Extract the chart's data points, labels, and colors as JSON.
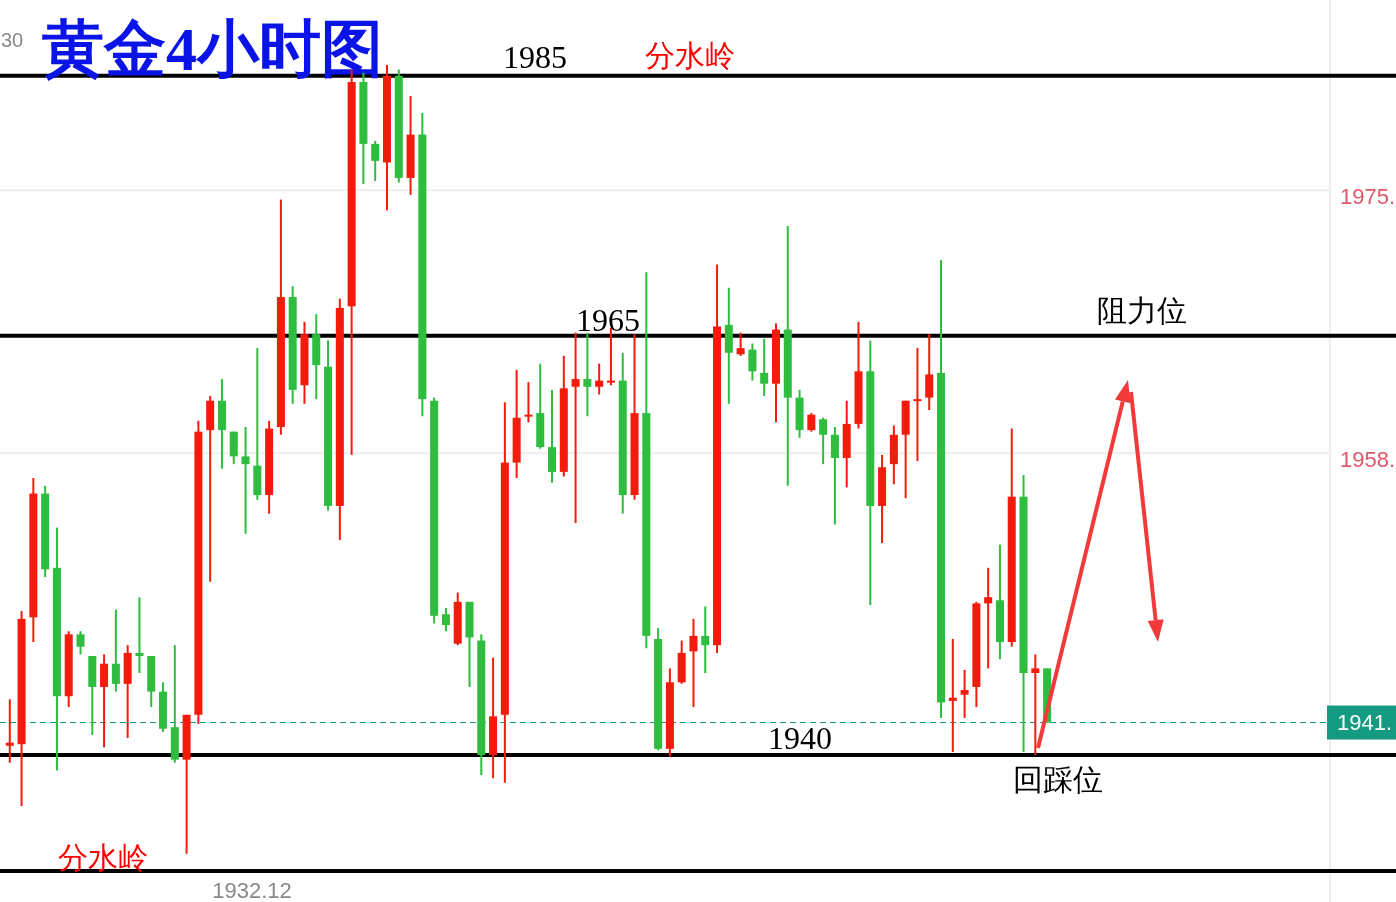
{
  "chart_data": {
    "type": "candlestick",
    "title": "黄金4小时图",
    "categories": [
      null,
      null,
      null,
      null,
      null,
      null,
      null,
      null,
      null,
      null,
      null,
      null,
      null,
      null,
      null,
      null,
      null,
      null,
      null,
      null,
      null,
      null,
      null,
      null,
      null,
      null,
      null,
      null,
      null,
      null,
      null,
      null,
      null,
      null,
      null,
      null,
      null,
      null,
      null,
      null,
      null,
      null,
      null,
      null,
      null,
      null,
      null,
      null,
      null,
      null,
      null,
      null,
      null,
      null,
      null,
      null,
      null,
      null,
      null,
      null,
      null,
      null,
      null,
      null,
      null,
      null,
      null,
      null,
      null,
      null,
      null,
      null,
      null,
      null,
      null,
      null,
      null,
      null,
      null,
      null,
      null,
      null,
      null,
      null,
      null,
      null,
      null,
      null,
      null,
      null,
      null,
      null,
      null,
      null,
      null,
      null,
      null,
      null,
      null,
      null,
      null,
      null,
      null,
      null,
      null,
      null,
      null,
      null,
      null,
      null,
      null,
      null
    ],
    "ohlc": [
      [
        1939.1,
        1942.1,
        1938.0,
        1939.3
      ],
      [
        1939.2,
        1947.8,
        1935.2,
        1947.3
      ],
      [
        1947.4,
        1956.4,
        1945.8,
        1955.4
      ],
      [
        1955.4,
        1955.9,
        1950.0,
        1950.5
      ],
      [
        1950.6,
        1953.2,
        1937.5,
        1942.3
      ],
      [
        1942.3,
        1946.5,
        1941.6,
        1946.3
      ],
      [
        1946.3,
        1946.5,
        1945.0,
        1945.5
      ],
      [
        1944.9,
        1944.9,
        1939.8,
        1942.9
      ],
      [
        1942.9,
        1945.0,
        1939.0,
        1944.4
      ],
      [
        1944.4,
        1947.9,
        1942.6,
        1943.1
      ],
      [
        1943.1,
        1945.6,
        1939.6,
        1945.1
      ],
      [
        1945.1,
        1948.7,
        1943.8,
        1944.9
      ],
      [
        1944.9,
        1944.9,
        1941.6,
        1942.6
      ],
      [
        1942.6,
        1943.2,
        1940.0,
        1940.2
      ],
      [
        1940.3,
        1945.6,
        1938.0,
        1938.2
      ],
      [
        1938.2,
        1941.1,
        1932.12,
        1941.1
      ],
      [
        1941.1,
        1960.1,
        1940.5,
        1959.4
      ],
      [
        1959.5,
        1961.7,
        1949.7,
        1961.4
      ],
      [
        1961.4,
        1962.8,
        1957.0,
        1959.5
      ],
      [
        1959.4,
        1959.4,
        1957.3,
        1957.8
      ],
      [
        1957.8,
        1959.7,
        1952.8,
        1957.3
      ],
      [
        1957.2,
        1964.8,
        1955.0,
        1955.3
      ],
      [
        1955.3,
        1960.1,
        1954.1,
        1959.6
      ],
      [
        1959.7,
        1974.4,
        1959.2,
        1968.1
      ],
      [
        1968.1,
        1968.8,
        1961.2,
        1962.1
      ],
      [
        1962.4,
        1966.5,
        1961.2,
        1965.7
      ],
      [
        1965.7,
        1967.0,
        1961.5,
        1963.7
      ],
      [
        1963.6,
        1965.3,
        1954.3,
        1954.6
      ],
      [
        1954.6,
        1968.0,
        1952.4,
        1967.4
      ],
      [
        1967.5,
        1982.8,
        1957.9,
        1982.0
      ],
      [
        1982.0,
        1982.6,
        1975.4,
        1978.0
      ],
      [
        1978.0,
        1978.2,
        1975.6,
        1976.9
      ],
      [
        1976.8,
        1983.1,
        1973.7,
        1982.4
      ],
      [
        1982.4,
        1982.8,
        1975.5,
        1975.8
      ],
      [
        1975.8,
        1981.1,
        1974.7,
        1978.6
      ],
      [
        1978.6,
        1980.0,
        1960.4,
        1961.5
      ],
      [
        1961.4,
        1961.6,
        1947.0,
        1947.5
      ],
      [
        1947.6,
        1948.0,
        1946.5,
        1946.9
      ],
      [
        1945.7,
        1949.0,
        1945.6,
        1948.4
      ],
      [
        1948.4,
        1948.4,
        1942.9,
        1946.1
      ],
      [
        1945.9,
        1946.3,
        1937.2,
        1938.5
      ],
      [
        1938.5,
        1944.8,
        1937.0,
        1941.0
      ],
      [
        1941.1,
        1961.3,
        1936.7,
        1957.4
      ],
      [
        1957.4,
        1963.4,
        1956.4,
        1960.3
      ],
      [
        1960.4,
        1962.6,
        1960.0,
        1960.5
      ],
      [
        1960.6,
        1963.8,
        1958.3,
        1958.4
      ],
      [
        1958.4,
        1962.1,
        1956.1,
        1956.8
      ],
      [
        1956.8,
        1964.3,
        1956.5,
        1962.2
      ],
      [
        1962.3,
        1965.8,
        1953.5,
        1962.8
      ],
      [
        1962.8,
        1965.8,
        1960.4,
        1962.3
      ],
      [
        1962.3,
        1963.8,
        1961.8,
        1962.7
      ],
      [
        1962.6,
        1966.1,
        1962.4,
        1962.7
      ],
      [
        1962.7,
        1964.5,
        1954.1,
        1955.3
      ],
      [
        1955.3,
        1965.7,
        1955.0,
        1960.6
      ],
      [
        1960.6,
        1969.7,
        1945.4,
        1946.2
      ],
      [
        1946.0,
        1946.7,
        1938.8,
        1938.9
      ],
      [
        1938.9,
        1944.1,
        1938.4,
        1943.2
      ],
      [
        1943.2,
        1945.9,
        1943.1,
        1945.1
      ],
      [
        1945.2,
        1947.3,
        1941.6,
        1946.2
      ],
      [
        1946.2,
        1948.1,
        1943.8,
        1945.6
      ],
      [
        1945.6,
        1970.2,
        1945.1,
        1966.2
      ],
      [
        1966.3,
        1968.7,
        1961.2,
        1964.5
      ],
      [
        1964.4,
        1965.8,
        1964.3,
        1964.8
      ],
      [
        1964.7,
        1965.1,
        1962.7,
        1963.3
      ],
      [
        1963.2,
        1965.4,
        1961.7,
        1962.5
      ],
      [
        1962.5,
        1966.4,
        1960.0,
        1966.0
      ],
      [
        1966.0,
        1972.7,
        1955.9,
        1961.6
      ],
      [
        1961.6,
        1962.1,
        1959.0,
        1959.5
      ],
      [
        1959.5,
        1960.6,
        1959.4,
        1960.5
      ],
      [
        1960.2,
        1960.3,
        1957.3,
        1959.2
      ],
      [
        1959.2,
        1959.7,
        1953.4,
        1957.7
      ],
      [
        1957.7,
        1961.4,
        1955.8,
        1959.9
      ],
      [
        1959.9,
        1966.5,
        1959.6,
        1963.3
      ],
      [
        1963.3,
        1965.3,
        1948.2,
        1954.6
      ],
      [
        1954.6,
        1957.9,
        1952.2,
        1957.1
      ],
      [
        1957.3,
        1959.8,
        1956.0,
        1959.2
      ],
      [
        1959.2,
        1961.4,
        1955.1,
        1961.4
      ],
      [
        1961.4,
        1964.8,
        1957.5,
        1961.5
      ],
      [
        1961.6,
        1965.7,
        1960.8,
        1963.1
      ],
      [
        1963.2,
        1970.5,
        1940.9,
        1941.9
      ],
      [
        1942.0,
        1946.0,
        1938.7,
        1942.2
      ],
      [
        1942.4,
        1944.0,
        1940.9,
        1942.7
      ],
      [
        1942.9,
        1948.4,
        1941.6,
        1948.3
      ],
      [
        1948.3,
        1950.6,
        1944.1,
        1948.7
      ],
      [
        1948.5,
        1952.1,
        1944.7,
        1945.8
      ],
      [
        1945.8,
        1959.6,
        1945.5,
        1955.2
      ],
      [
        1955.2,
        1956.6,
        1938.7,
        1943.8
      ],
      [
        1943.8,
        1945.0,
        1938.5,
        1944.1
      ],
      [
        1944.1,
        1944.1,
        1940.6,
        1940.6
      ],
      null,
      null,
      null,
      null,
      null,
      null,
      null,
      null,
      null,
      null,
      null,
      null,
      null,
      null,
      null,
      null,
      null,
      null,
      null,
      null,
      null,
      null,
      null
    ],
    "ylim": [
      1929.0,
      1987.3
    ],
    "yticks": [
      {
        "value": 1975,
        "label": "1975."
      },
      {
        "value": 1958,
        "label": "1958."
      }
    ],
    "grid": "y",
    "tick_labels": "y",
    "ref_lines": [
      {
        "axis": "y",
        "value": 1982.4,
        "color": "#000000",
        "line_style": "solid"
      },
      {
        "axis": "y",
        "value": 1965.6,
        "color": "#000000",
        "line_style": "solid"
      },
      {
        "axis": "y",
        "value": 1938.5,
        "color": "#000000",
        "line_style": "solid"
      },
      {
        "axis": "y",
        "value": 1931.0,
        "label": "分水岭",
        "color": "#000000",
        "line_style": "solid"
      },
      {
        "axis": "y",
        "value": 1940.6,
        "label": "1941.",
        "color": "#159a82",
        "line_style": "dashed"
      }
    ],
    "annotations": [
      {
        "text": "分水岭",
        "y": 1982.4
      },
      {
        "text": "阻力位",
        "y": 1965.6
      },
      {
        "text": "回踩位",
        "y": 1938.5
      },
      "1932.12",
      "30",
      "1985",
      "1965",
      "1940"
    ]
  }
}
